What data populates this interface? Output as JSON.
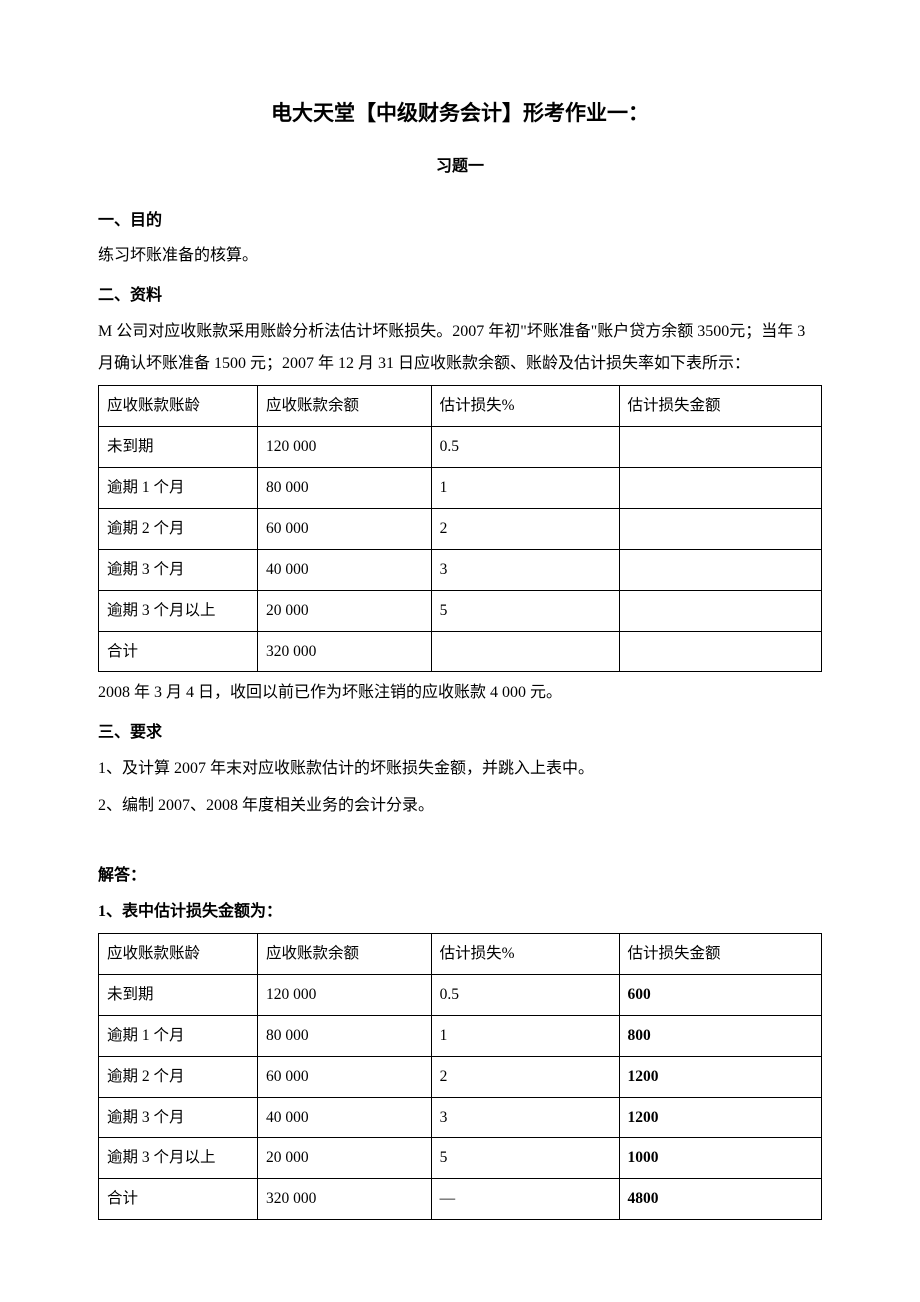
{
  "title": "电大天堂【中级财务会计】形考作业一：",
  "subtitle": "习题一",
  "section1": {
    "header": "一、目的",
    "text": "练习坏账准备的核算。"
  },
  "section2": {
    "header": "二、资料",
    "para1": "M 公司对应收账款采用账龄分析法估计坏账损失。2007 年初\"坏账准备\"账户贷方余额 3500元；当年 3 月确认坏账准备 1500 元；2007 年 12 月 31 日应收账款余额、账龄及估计损失率如下表所示：",
    "para2": "2008 年 3 月 4 日，收回以前已作为坏账注销的应收账款 4 000 元。"
  },
  "table1": {
    "headers": [
      "应收账款账龄",
      "应收账款余额",
      "估计损失%",
      "估计损失金额"
    ],
    "rows": [
      [
        "未到期",
        "120 000",
        "0.5",
        ""
      ],
      [
        "逾期 1 个月",
        "80 000",
        "1",
        ""
      ],
      [
        "逾期 2 个月",
        "60 000",
        "2",
        ""
      ],
      [
        "逾期 3 个月",
        "40 000",
        "3",
        ""
      ],
      [
        "逾期 3 个月以上",
        "20 000",
        "5",
        ""
      ],
      [
        "合计",
        "320 000",
        "",
        ""
      ]
    ]
  },
  "section3": {
    "header": "三、要求",
    "item1": "1、及计算 2007 年末对应收账款估计的坏账损失金额，并跳入上表中。",
    "item2": "2、编制 2007、2008 年度相关业务的会计分录。"
  },
  "answer": {
    "header": "解答：",
    "sub1": "1、表中估计损失金额为："
  },
  "table2": {
    "headers": [
      "应收账款账龄",
      "应收账款余额",
      "估计损失%",
      "估计损失金额"
    ],
    "rows": [
      [
        "未到期",
        "120 000",
        "0.5",
        "600"
      ],
      [
        "逾期 1 个月",
        "80 000",
        "1",
        "800"
      ],
      [
        "逾期 2 个月",
        "60 000",
        "2",
        "1200"
      ],
      [
        "逾期 3 个月",
        "40 000",
        "3",
        "1200"
      ],
      [
        "逾期 3 个月以上",
        "20 000",
        "5",
        "1000"
      ],
      [
        "合计",
        "320 000",
        "—",
        "4800"
      ]
    ]
  }
}
